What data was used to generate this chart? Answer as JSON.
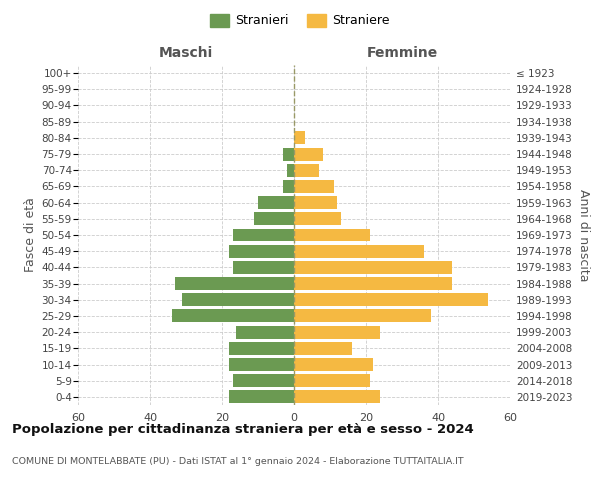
{
  "age_groups": [
    "100+",
    "95-99",
    "90-94",
    "85-89",
    "80-84",
    "75-79",
    "70-74",
    "65-69",
    "60-64",
    "55-59",
    "50-54",
    "45-49",
    "40-44",
    "35-39",
    "30-34",
    "25-29",
    "20-24",
    "15-19",
    "10-14",
    "5-9",
    "0-4"
  ],
  "birth_years": [
    "≤ 1923",
    "1924-1928",
    "1929-1933",
    "1934-1938",
    "1939-1943",
    "1944-1948",
    "1949-1953",
    "1954-1958",
    "1959-1963",
    "1964-1968",
    "1969-1973",
    "1974-1978",
    "1979-1983",
    "1984-1988",
    "1989-1993",
    "1994-1998",
    "1999-2003",
    "2004-2008",
    "2009-2013",
    "2014-2018",
    "2019-2023"
  ],
  "males": [
    0,
    0,
    0,
    0,
    0,
    3,
    2,
    3,
    10,
    11,
    17,
    18,
    17,
    33,
    31,
    34,
    16,
    18,
    18,
    17,
    18
  ],
  "females": [
    0,
    0,
    0,
    0,
    3,
    8,
    7,
    11,
    12,
    13,
    21,
    36,
    44,
    44,
    54,
    38,
    24,
    16,
    22,
    21,
    24
  ],
  "male_color": "#6b9a52",
  "female_color": "#f5b942",
  "background_color": "#ffffff",
  "grid_color": "#cccccc",
  "title": "Popolazione per cittadinanza straniera per età e sesso - 2024",
  "subtitle": "COMUNE DI MONTELABBATE (PU) - Dati ISTAT al 1° gennaio 2024 - Elaborazione TUTTAITALIA.IT",
  "header_left": "Maschi",
  "header_right": "Femmine",
  "ylabel_left": "Fasce di età",
  "ylabel_right": "Anni di nascita",
  "legend_male": "Stranieri",
  "legend_female": "Straniere",
  "xlim": 60,
  "bar_height": 0.8
}
